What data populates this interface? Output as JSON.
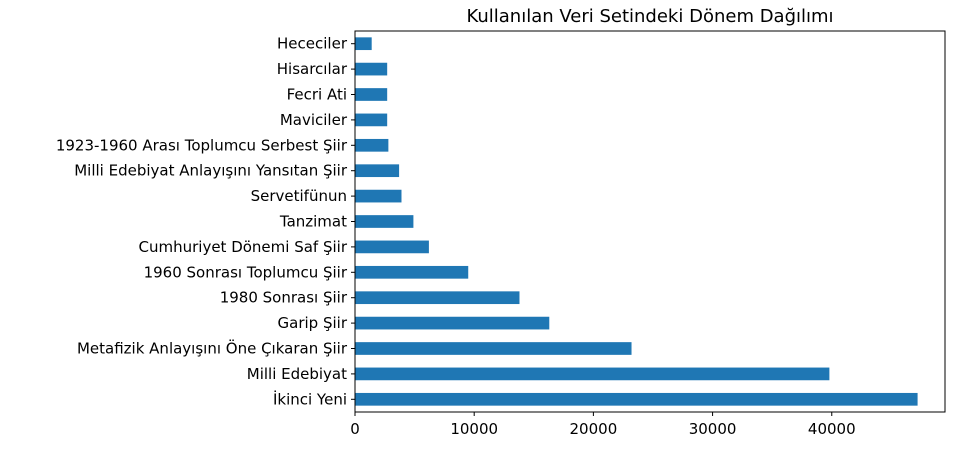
{
  "chart_data": {
    "type": "bar",
    "orientation": "horizontal",
    "title": "Kullanılan Veri Setindeki Dönem Dağılımı",
    "xlabel": "",
    "ylabel": "",
    "categories": [
      "İkinci Yeni",
      "Milli Edebiyat",
      "Metafizik Anlayışını Öne Çıkaran Şiir",
      "Garip Şiir",
      "1980 Sonrası Şiir",
      "1960 Sonrası Toplumcu Şiir",
      "Cumhuriyet Dönemi Saf Şiir",
      "Tanzimat",
      "Servetifünun",
      "Milli Edebiyat Anlayışını Yansıtan Şiir",
      "1923-1960 Arası Toplumcu Serbest Şiir",
      "Maviciler",
      "Fecri Ati",
      "Hisarcılar",
      "Hececiler"
    ],
    "values": [
      47200,
      39800,
      23200,
      16300,
      13800,
      9500,
      6200,
      4900,
      3900,
      3700,
      2800,
      2700,
      2700,
      2700,
      1400
    ],
    "xlim": [
      0,
      49500
    ],
    "xticks": [
      0,
      10000,
      20000,
      30000,
      40000
    ],
    "xtick_labels": [
      "0",
      "10000",
      "20000",
      "30000",
      "40000"
    ],
    "bar_color": "#1f77b4",
    "grid": false,
    "legend": "none"
  }
}
